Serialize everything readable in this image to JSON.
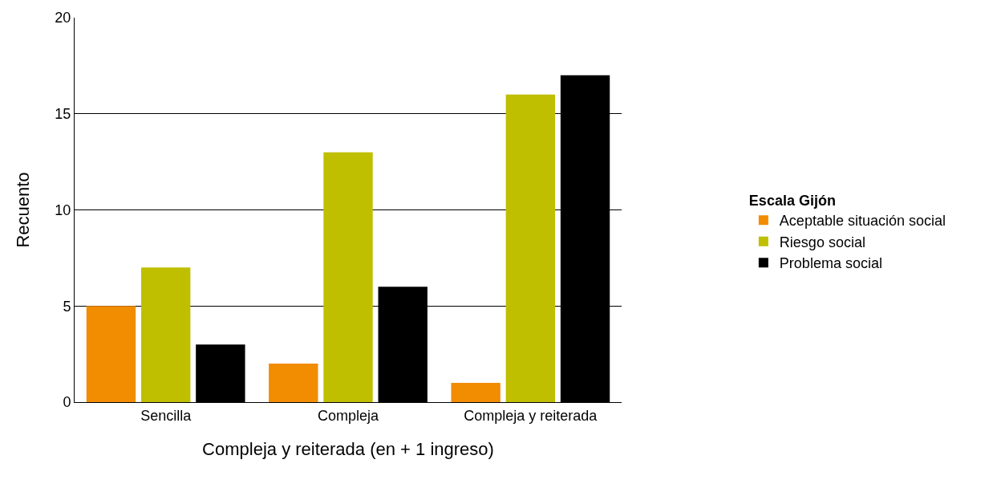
{
  "chart_data": {
    "type": "bar",
    "xlabel": "Compleja y reiterada (en + 1 ingreso)",
    "ylabel": "Recuento",
    "legend_title": "Escala Gijón",
    "categories": [
      "Sencilla",
      "Compleja",
      "Compleja y reiterada"
    ],
    "series": [
      {
        "name": "Aceptable situación social",
        "color": "#f28c00",
        "values": [
          5,
          2,
          1
        ]
      },
      {
        "name": "Riesgo social",
        "color": "#bfbf00",
        "values": [
          7,
          13,
          16
        ]
      },
      {
        "name": "Problema social",
        "color": "#000000",
        "values": [
          3,
          6,
          17
        ]
      }
    ],
    "ylim": [
      0,
      20
    ],
    "yticks": [
      0,
      5,
      10,
      15,
      20
    ],
    "grid": "y",
    "legend": "right"
  }
}
